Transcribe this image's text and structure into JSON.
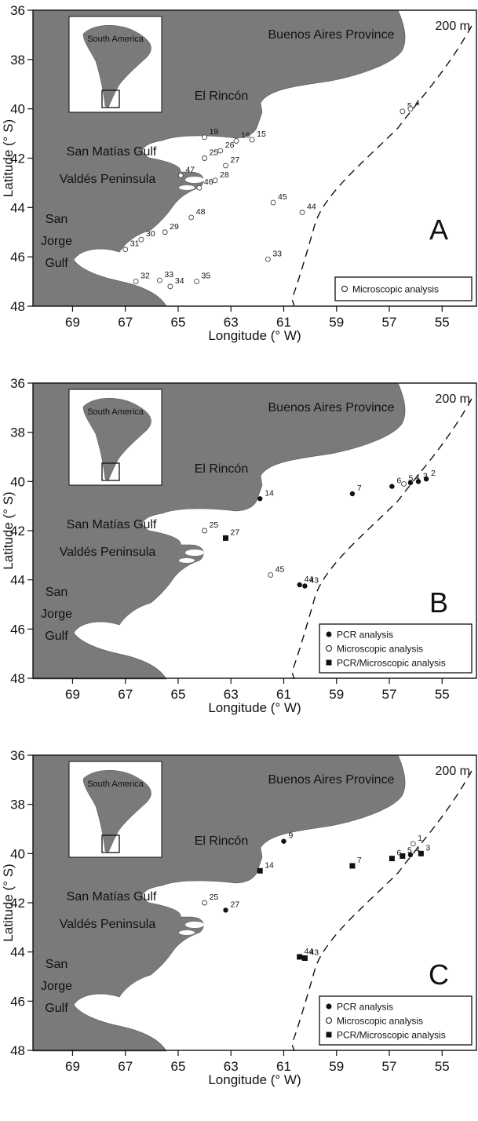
{
  "figure": {
    "inset_label": "South America",
    "isobath_label": "200 m",
    "regions": {
      "buenos_aires": "Buenos Aires Province",
      "el_rincon": "El Rincón",
      "san_matias": "San Matías Gulf",
      "valdes": "Valdés Peninsula",
      "san_jorge_1": "San",
      "san_jorge_2": "Jorge",
      "san_jorge_3": "Gulf"
    },
    "xlabel": "Longitude (° W)",
    "ylabel": "Latitude (° S)",
    "xticks": [
      69,
      67,
      65,
      63,
      61,
      59,
      57,
      55
    ],
    "yticks": [
      36,
      38,
      40,
      42,
      44,
      46,
      48
    ],
    "xticks_text": [
      "69",
      "67",
      "65",
      "63",
      "61",
      "59",
      "57",
      "55"
    ],
    "yticks_text": [
      "36",
      "38",
      "40",
      "42",
      "44",
      "46",
      "48"
    ],
    "xlim": [
      70.5,
      53.7
    ],
    "ylim": [
      36,
      48
    ],
    "legend_labels": {
      "pcr": "PCR analysis",
      "micro": "Microscopic analysis",
      "both": "PCR/Microscopic analysis"
    },
    "marker_types": {
      "micro": "open circle",
      "pcr": "filled circle",
      "both": "filled square"
    }
  },
  "chart_data": [
    {
      "type": "scatter",
      "panel_label": "A",
      "legend": [
        "micro"
      ],
      "stations": [
        {
          "id": "5",
          "lon": 56.5,
          "lat": 40.1,
          "marker": "micro"
        },
        {
          "id": "4",
          "lon": 56.2,
          "lat": 40.0,
          "marker": "micro"
        },
        {
          "id": "19",
          "lon": 64.0,
          "lat": 41.15,
          "marker": "micro"
        },
        {
          "id": "16",
          "lon": 62.8,
          "lat": 41.3,
          "marker": "micro"
        },
        {
          "id": "26",
          "lon": 63.4,
          "lat": 41.7,
          "marker": "micro"
        },
        {
          "id": "15",
          "lon": 62.2,
          "lat": 41.25,
          "marker": "micro"
        },
        {
          "id": "25",
          "lon": 64.0,
          "lat": 42.0,
          "marker": "micro"
        },
        {
          "id": "27",
          "lon": 63.2,
          "lat": 42.3,
          "marker": "micro"
        },
        {
          "id": "47",
          "lon": 64.9,
          "lat": 42.7,
          "marker": "micro"
        },
        {
          "id": "28",
          "lon": 63.6,
          "lat": 42.9,
          "marker": "micro"
        },
        {
          "id": "46",
          "lon": 64.2,
          "lat": 43.2,
          "marker": "micro"
        },
        {
          "id": "45",
          "lon": 61.4,
          "lat": 43.8,
          "marker": "micro"
        },
        {
          "id": "44",
          "lon": 60.3,
          "lat": 44.2,
          "marker": "micro"
        },
        {
          "id": "48",
          "lon": 64.5,
          "lat": 44.4,
          "marker": "micro"
        },
        {
          "id": "29",
          "lon": 65.5,
          "lat": 45.0,
          "marker": "micro"
        },
        {
          "id": "30",
          "lon": 66.4,
          "lat": 45.3,
          "marker": "micro"
        },
        {
          "id": "31",
          "lon": 67.0,
          "lat": 45.7,
          "marker": "micro"
        },
        {
          "id": "33",
          "lon": 61.6,
          "lat": 46.1,
          "marker": "micro"
        },
        {
          "id": "32",
          "lon": 66.6,
          "lat": 47.0,
          "marker": "micro"
        },
        {
          "id": "33",
          "lon": 65.7,
          "lat": 46.95,
          "marker": "micro"
        },
        {
          "id": "34",
          "lon": 65.3,
          "lat": 47.2,
          "marker": "micro"
        },
        {
          "id": "35",
          "lon": 64.3,
          "lat": 47.0,
          "marker": "micro"
        }
      ]
    },
    {
      "type": "scatter",
      "panel_label": "B",
      "legend": [
        "pcr",
        "micro",
        "both"
      ],
      "stations": [
        {
          "id": "14",
          "lon": 61.9,
          "lat": 40.7,
          "marker": "pcr"
        },
        {
          "id": "7",
          "lon": 58.4,
          "lat": 40.5,
          "marker": "pcr"
        },
        {
          "id": "6",
          "lon": 56.9,
          "lat": 40.2,
          "marker": "pcr"
        },
        {
          "id": "5",
          "lon": 56.45,
          "lat": 40.1,
          "marker": "micro"
        },
        {
          "id": "4",
          "lon": 56.2,
          "lat": 40.05,
          "marker": "pcr"
        },
        {
          "id": "3",
          "lon": 55.9,
          "lat": 40.0,
          "marker": "pcr"
        },
        {
          "id": "2",
          "lon": 55.6,
          "lat": 39.9,
          "marker": "pcr"
        },
        {
          "id": "25",
          "lon": 64.0,
          "lat": 42.0,
          "marker": "micro"
        },
        {
          "id": "27",
          "lon": 63.2,
          "lat": 42.3,
          "marker": "both"
        },
        {
          "id": "45",
          "lon": 61.5,
          "lat": 43.8,
          "marker": "micro"
        },
        {
          "id": "44",
          "lon": 60.4,
          "lat": 44.2,
          "marker": "pcr"
        },
        {
          "id": "43",
          "lon": 60.2,
          "lat": 44.25,
          "marker": "pcr"
        }
      ]
    },
    {
      "type": "scatter",
      "panel_label": "C",
      "legend": [
        "pcr",
        "micro",
        "both"
      ],
      "stations": [
        {
          "id": "9",
          "lon": 61.0,
          "lat": 39.5,
          "marker": "pcr"
        },
        {
          "id": "14",
          "lon": 61.9,
          "lat": 40.7,
          "marker": "both"
        },
        {
          "id": "7",
          "lon": 58.4,
          "lat": 40.5,
          "marker": "both"
        },
        {
          "id": "1",
          "lon": 56.1,
          "lat": 39.6,
          "marker": "micro"
        },
        {
          "id": "6",
          "lon": 56.9,
          "lat": 40.2,
          "marker": "both"
        },
        {
          "id": "5",
          "lon": 56.5,
          "lat": 40.1,
          "marker": "both"
        },
        {
          "id": "4",
          "lon": 56.2,
          "lat": 40.05,
          "marker": "pcr"
        },
        {
          "id": "3",
          "lon": 55.8,
          "lat": 40.0,
          "marker": "both"
        },
        {
          "id": "25",
          "lon": 64.0,
          "lat": 42.0,
          "marker": "micro"
        },
        {
          "id": "27",
          "lon": 63.2,
          "lat": 42.3,
          "marker": "pcr"
        },
        {
          "id": "44",
          "lon": 60.4,
          "lat": 44.2,
          "marker": "both"
        },
        {
          "id": "43",
          "lon": 60.2,
          "lat": 44.25,
          "marker": "both"
        }
      ]
    }
  ]
}
